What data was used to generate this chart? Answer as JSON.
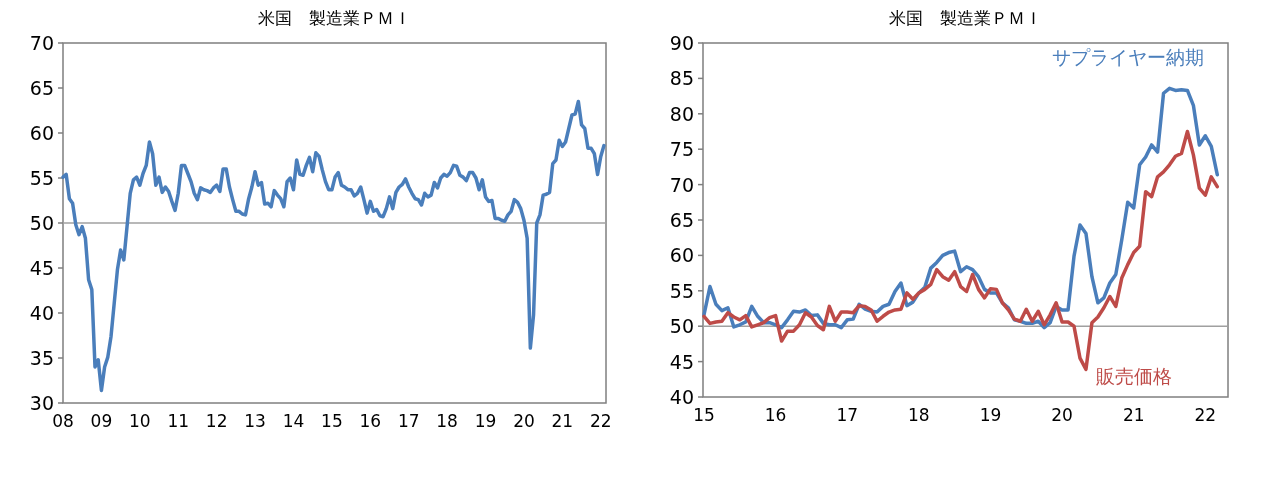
{
  "chart_data": [
    {
      "type": "line",
      "title": "米国　製造業ＰＭＩ",
      "x": [
        "2008-01",
        "2008-02",
        "2008-03",
        "2008-04",
        "2008-05",
        "2008-06",
        "2008-07",
        "2008-08",
        "2008-09",
        "2008-10",
        "2008-11",
        "2008-12",
        "2009-01",
        "2009-02",
        "2009-03",
        "2009-04",
        "2009-05",
        "2009-06",
        "2009-07",
        "2009-08",
        "2009-09",
        "2009-10",
        "2009-11",
        "2009-12",
        "2010-01",
        "2010-02",
        "2010-03",
        "2010-04",
        "2010-05",
        "2010-06",
        "2010-07",
        "2010-08",
        "2010-09",
        "2010-10",
        "2010-11",
        "2010-12",
        "2011-01",
        "2011-02",
        "2011-03",
        "2011-04",
        "2011-05",
        "2011-06",
        "2011-07",
        "2011-08",
        "2011-09",
        "2011-10",
        "2011-11",
        "2011-12",
        "2012-01",
        "2012-02",
        "2012-03",
        "2012-04",
        "2012-05",
        "2012-06",
        "2012-07",
        "2012-08",
        "2012-09",
        "2012-10",
        "2012-11",
        "2012-12",
        "2013-01",
        "2013-02",
        "2013-03",
        "2013-04",
        "2013-05",
        "2013-06",
        "2013-07",
        "2013-08",
        "2013-09",
        "2013-10",
        "2013-11",
        "2013-12",
        "2014-01",
        "2014-02",
        "2014-03",
        "2014-04",
        "2014-05",
        "2014-06",
        "2014-07",
        "2014-08",
        "2014-09",
        "2014-10",
        "2014-11",
        "2014-12",
        "2015-01",
        "2015-02",
        "2015-03",
        "2015-04",
        "2015-05",
        "2015-06",
        "2015-07",
        "2015-08",
        "2015-09",
        "2015-10",
        "2015-11",
        "2015-12",
        "2016-01",
        "2016-02",
        "2016-03",
        "2016-04",
        "2016-05",
        "2016-06",
        "2016-07",
        "2016-08",
        "2016-09",
        "2016-10",
        "2016-11",
        "2016-12",
        "2017-01",
        "2017-02",
        "2017-03",
        "2017-04",
        "2017-05",
        "2017-06",
        "2017-07",
        "2017-08",
        "2017-09",
        "2017-10",
        "2017-11",
        "2017-12",
        "2018-01",
        "2018-02",
        "2018-03",
        "2018-04",
        "2018-05",
        "2018-06",
        "2018-07",
        "2018-08",
        "2018-09",
        "2018-10",
        "2018-11",
        "2018-12",
        "2019-01",
        "2019-02",
        "2019-03",
        "2019-04",
        "2019-05",
        "2019-06",
        "2019-07",
        "2019-08",
        "2019-09",
        "2019-10",
        "2019-11",
        "2019-12",
        "2020-01",
        "2020-02",
        "2020-03",
        "2020-04",
        "2020-05",
        "2020-06",
        "2020-07",
        "2020-08",
        "2020-09",
        "2020-10",
        "2020-11",
        "2020-12",
        "2021-01",
        "2021-02",
        "2021-03",
        "2021-04",
        "2021-05",
        "2021-06",
        "2021-07",
        "2021-08",
        "2021-09",
        "2021-10",
        "2021-11",
        "2021-12",
        "2022-01",
        "2022-02"
      ],
      "series": [
        {
          "color": "#4a7ebb",
          "values": [
            55.1,
            55.4,
            52.7,
            52.2,
            49.8,
            48.7,
            49.6,
            48.3,
            43.7,
            42.6,
            34.0,
            34.8,
            31.4,
            34.0,
            35.1,
            37.4,
            41.1,
            44.8,
            47.0,
            45.9,
            49.6,
            53.3,
            54.8,
            55.1,
            54.2,
            55.5,
            56.4,
            59.0,
            57.7,
            54.2,
            55.1,
            53.4,
            54.0,
            53.5,
            52.4,
            51.4,
            53.3,
            56.4,
            56.4,
            55.5,
            54.6,
            53.3,
            52.6,
            53.9,
            53.7,
            53.6,
            53.4,
            53.9,
            54.2,
            53.5,
            56.0,
            56.0,
            54.0,
            52.6,
            51.3,
            51.3,
            51.0,
            50.9,
            52.7,
            54.0,
            55.7,
            54.2,
            54.5,
            52.1,
            52.2,
            51.8,
            53.6,
            53.1,
            52.7,
            51.8,
            54.6,
            55.0,
            53.7,
            57.0,
            55.4,
            55.3,
            56.4,
            57.3,
            55.7,
            57.8,
            57.4,
            55.9,
            54.6,
            53.7,
            53.7,
            55.1,
            55.6,
            54.2,
            54.0,
            53.7,
            53.7,
            53.0,
            53.3,
            54.0,
            52.6,
            51.1,
            52.4,
            51.3,
            51.5,
            50.8,
            50.7,
            51.6,
            52.9,
            51.6,
            53.4,
            54.0,
            54.3,
            54.9,
            54.0,
            53.3,
            52.7,
            52.6,
            52.0,
            53.3,
            52.9,
            53.1,
            54.5,
            53.9,
            55.0,
            55.4,
            55.2,
            55.6,
            56.4,
            56.3,
            55.3,
            55.1,
            54.7,
            55.6,
            55.6,
            55.0,
            53.7,
            54.8,
            52.9,
            52.4,
            52.5,
            50.5,
            50.5,
            50.3,
            50.2,
            50.9,
            51.3,
            52.6,
            52.3,
            51.6,
            50.3,
            48.3,
            36.1,
            39.8,
            50.0,
            50.9,
            53.1,
            53.2,
            53.4,
            56.6,
            57.0,
            59.2,
            58.5,
            59.0,
            60.5,
            62.0,
            62.1,
            63.5,
            60.9,
            60.5,
            58.3,
            58.3,
            57.7,
            55.4,
            57.4,
            58.6
          ]
        }
      ],
      "xlim": [
        "2008-01",
        "2022-02-20"
      ],
      "xticks": [
        {
          "value": "2008-01",
          "label": "08"
        },
        {
          "value": "2009-01",
          "label": "09"
        },
        {
          "value": "2010-01",
          "label": "10"
        },
        {
          "value": "2011-01",
          "label": "11"
        },
        {
          "value": "2012-01",
          "label": "12"
        },
        {
          "value": "2013-01",
          "label": "13"
        },
        {
          "value": "2014-01",
          "label": "14"
        },
        {
          "value": "2015-01",
          "label": "15"
        },
        {
          "value": "2016-01",
          "label": "16"
        },
        {
          "value": "2017-01",
          "label": "17"
        },
        {
          "value": "2018-01",
          "label": "18"
        },
        {
          "value": "2019-01",
          "label": "19"
        },
        {
          "value": "2020-01",
          "label": "20"
        },
        {
          "value": "2021-01",
          "label": "21"
        },
        {
          "value": "2022-01",
          "label": "22"
        }
      ],
      "ylim": [
        30,
        70
      ],
      "yticks": [
        30,
        35,
        40,
        45,
        50,
        55,
        60,
        65,
        70
      ],
      "ref_lines": [
        {
          "axis": "y",
          "value": 50,
          "color": "#a0a0a0"
        }
      ],
      "grid": false
    },
    {
      "type": "line",
      "title": "米国　製造業ＰＭＩ",
      "x": [
        "2015-01",
        "2015-02",
        "2015-03",
        "2015-04",
        "2015-05",
        "2015-06",
        "2015-07",
        "2015-08",
        "2015-09",
        "2015-10",
        "2015-11",
        "2015-12",
        "2016-01",
        "2016-02",
        "2016-03",
        "2016-04",
        "2016-05",
        "2016-06",
        "2016-07",
        "2016-08",
        "2016-09",
        "2016-10",
        "2016-11",
        "2016-12",
        "2017-01",
        "2017-02",
        "2017-03",
        "2017-04",
        "2017-05",
        "2017-06",
        "2017-07",
        "2017-08",
        "2017-09",
        "2017-10",
        "2017-11",
        "2017-12",
        "2018-01",
        "2018-02",
        "2018-03",
        "2018-04",
        "2018-05",
        "2018-06",
        "2018-07",
        "2018-08",
        "2018-09",
        "2018-10",
        "2018-11",
        "2018-12",
        "2019-01",
        "2019-02",
        "2019-03",
        "2019-04",
        "2019-05",
        "2019-06",
        "2019-07",
        "2019-08",
        "2019-09",
        "2019-10",
        "2019-11",
        "2019-12",
        "2020-01",
        "2020-02",
        "2020-03",
        "2020-04",
        "2020-05",
        "2020-06",
        "2020-07",
        "2020-08",
        "2020-09",
        "2020-10",
        "2020-11",
        "2020-12",
        "2021-01",
        "2021-02",
        "2021-03",
        "2021-04",
        "2021-05",
        "2021-06",
        "2021-07",
        "2021-08",
        "2021-09",
        "2021-10",
        "2021-11",
        "2021-12",
        "2022-01",
        "2022-02",
        "2022-03"
      ],
      "series": [
        {
          "name": "サプライヤー納期",
          "color": "#4a7ebb",
          "values": [
            51.6,
            55.6,
            53.1,
            52.2,
            52.6,
            49.9,
            50.2,
            50.6,
            52.8,
            51.4,
            50.5,
            50.5,
            50.2,
            49.8,
            50.9,
            52.1,
            52.0,
            52.3,
            51.5,
            51.6,
            50.4,
            50.2,
            50.2,
            49.8,
            50.9,
            51.0,
            53.1,
            52.4,
            52.1,
            52.0,
            52.8,
            53.1,
            54.9,
            56.1,
            52.9,
            53.4,
            54.7,
            55.5,
            58.2,
            59.0,
            60.0,
            60.4,
            60.6,
            57.7,
            58.4,
            58.0,
            57.0,
            55.2,
            54.7,
            54.7,
            53.3,
            52.6,
            50.9,
            50.7,
            50.4,
            50.4,
            50.7,
            49.8,
            50.5,
            52.8,
            52.3,
            52.3,
            59.9,
            64.3,
            63.1,
            57.0,
            53.3,
            54.0,
            56.1,
            57.3,
            62.2,
            67.5,
            66.7,
            72.8,
            73.9,
            75.6,
            74.6,
            82.9,
            83.6,
            83.3,
            83.4,
            83.3,
            81.2,
            75.6,
            76.9,
            75.4,
            71.4
          ]
        },
        {
          "name": "販売価格",
          "color": "#be4b48",
          "values": [
            51.4,
            50.4,
            50.6,
            50.7,
            51.9,
            51.3,
            50.9,
            51.5,
            49.9,
            50.2,
            50.5,
            51.2,
            51.5,
            47.9,
            49.3,
            49.3,
            50.2,
            51.9,
            51.3,
            50.1,
            49.5,
            52.8,
            50.7,
            52.0,
            52.0,
            51.9,
            52.9,
            52.8,
            52.3,
            50.7,
            51.4,
            52.0,
            52.3,
            52.4,
            54.7,
            53.8,
            54.7,
            55.2,
            55.9,
            58.0,
            57.0,
            56.5,
            57.7,
            55.6,
            54.9,
            57.3,
            55.2,
            54.0,
            55.3,
            55.2,
            53.3,
            52.3,
            51.0,
            50.7,
            52.4,
            50.7,
            52.1,
            50.2,
            51.6,
            53.3,
            50.6,
            50.6,
            50.0,
            45.5,
            43.9,
            50.5,
            51.3,
            52.6,
            54.2,
            52.8,
            56.8,
            58.7,
            60.4,
            61.3,
            69.0,
            68.3,
            71.1,
            71.8,
            72.8,
            74.0,
            74.4,
            77.5,
            74.2,
            69.5,
            68.5,
            71.1,
            69.7
          ]
        }
      ],
      "xlim": [
        "2014-12-26",
        "2022-04-25"
      ],
      "xticks": [
        {
          "value": "2015-01",
          "label": "15"
        },
        {
          "value": "2016-01",
          "label": "16"
        },
        {
          "value": "2017-01",
          "label": "17"
        },
        {
          "value": "2018-01",
          "label": "18"
        },
        {
          "value": "2019-01",
          "label": "19"
        },
        {
          "value": "2020-01",
          "label": "20"
        },
        {
          "value": "2021-01",
          "label": "21"
        },
        {
          "value": "2022-01",
          "label": "22"
        }
      ],
      "ylim": [
        40,
        90
      ],
      "yticks": [
        40,
        45,
        50,
        55,
        60,
        65,
        70,
        75,
        80,
        85,
        90
      ],
      "ref_lines": [
        {
          "axis": "y",
          "value": 50,
          "color": "#a0a0a0"
        }
      ],
      "grid": false
    }
  ]
}
